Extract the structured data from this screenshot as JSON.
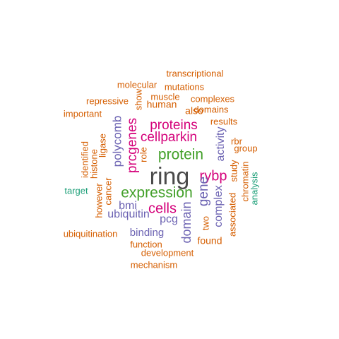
{
  "words": [
    {
      "text": "ring",
      "color": "#4a4a4a"
    },
    {
      "text": "expression",
      "color": "#43a02a"
    },
    {
      "text": "protein",
      "color": "#43a02a"
    },
    {
      "text": "proteins",
      "color": "#d4007a"
    },
    {
      "text": "rybp",
      "color": "#d4007a"
    },
    {
      "text": "cells",
      "color": "#d4007a"
    },
    {
      "text": "cellparkin",
      "color": "#d4007a"
    },
    {
      "text": "prcgenes",
      "color": "#d4007a"
    },
    {
      "text": "polycomb",
      "color": "#6b62b2"
    },
    {
      "text": "gene",
      "color": "#6b62b2"
    },
    {
      "text": "domain",
      "color": "#6b62b2"
    },
    {
      "text": "complex",
      "color": "#6b62b2"
    },
    {
      "text": "activity",
      "color": "#6b62b2"
    },
    {
      "text": "ubiquitin",
      "color": "#6b62b2"
    },
    {
      "text": "pcg",
      "color": "#6b62b2"
    },
    {
      "text": "bmi",
      "color": "#6b62b2"
    },
    {
      "text": "binding",
      "color": "#6b62b2"
    },
    {
      "text": "transcriptional",
      "color": "#d55e00"
    },
    {
      "text": "molecular",
      "color": "#d55e00"
    },
    {
      "text": "mutations",
      "color": "#d55e00"
    },
    {
      "text": "muscle",
      "color": "#d55e00"
    },
    {
      "text": "repressive",
      "color": "#d55e00"
    },
    {
      "text": "human",
      "color": "#d55e00"
    },
    {
      "text": "complexes",
      "color": "#d55e00"
    },
    {
      "text": "domains",
      "color": "#d55e00"
    },
    {
      "text": "important",
      "color": "#d55e00"
    },
    {
      "text": "show",
      "color": "#d55e00"
    },
    {
      "text": "also",
      "color": "#d55e00"
    },
    {
      "text": "results",
      "color": "#d55e00"
    },
    {
      "text": "rbr",
      "color": "#d55e00"
    },
    {
      "text": "group",
      "color": "#d55e00"
    },
    {
      "text": "identified",
      "color": "#d55e00"
    },
    {
      "text": "histone",
      "color": "#d55e00"
    },
    {
      "text": "ligase",
      "color": "#d55e00"
    },
    {
      "text": "role",
      "color": "#d55e00"
    },
    {
      "text": "study",
      "color": "#d55e00"
    },
    {
      "text": "chromatin",
      "color": "#d55e00"
    },
    {
      "text": "analysis",
      "color": "#1b9e77"
    },
    {
      "text": "target",
      "color": "#1b9e77"
    },
    {
      "text": "however",
      "color": "#d55e00"
    },
    {
      "text": "cancer",
      "color": "#d55e00"
    },
    {
      "text": "associated",
      "color": "#d55e00"
    },
    {
      "text": "two",
      "color": "#d55e00"
    },
    {
      "text": "found",
      "color": "#d55e00"
    },
    {
      "text": "ubiquitination",
      "color": "#d55e00"
    },
    {
      "text": "function",
      "color": "#d55e00"
    },
    {
      "text": "development",
      "color": "#d55e00"
    },
    {
      "text": "mechanism",
      "color": "#d55e00"
    }
  ]
}
